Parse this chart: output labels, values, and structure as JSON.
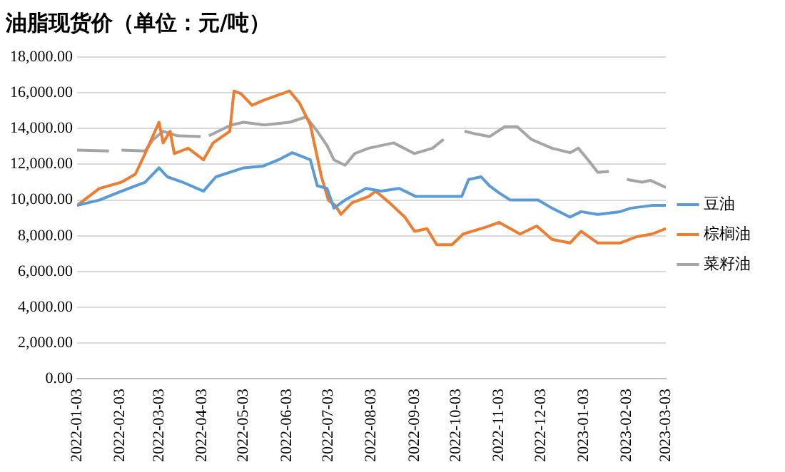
{
  "chart_data": {
    "type": "line",
    "title": "油脂现货价（单位：元/吨）",
    "xlim": [
      "2022-01-03",
      "2023-03-03"
    ],
    "xticks": [
      "2022-01-03",
      "2022-02-03",
      "2022-03-03",
      "2022-04-03",
      "2022-05-03",
      "2022-06-03",
      "2022-07-03",
      "2022-08-03",
      "2022-09-03",
      "2022-10-03",
      "2022-11-03",
      "2022-12-03",
      "2023-01-03",
      "2023-02-03",
      "2023-03-03"
    ],
    "ylim": [
      0,
      18000
    ],
    "yticks": [
      {
        "value": 0,
        "label": "0.00"
      },
      {
        "value": 2000,
        "label": "2,000.00"
      },
      {
        "value": 4000,
        "label": "4,000.00"
      },
      {
        "value": 6000,
        "label": "6,000.00"
      },
      {
        "value": 8000,
        "label": "8,000.00"
      },
      {
        "value": 10000,
        "label": "10,000.00"
      },
      {
        "value": 12000,
        "label": "12,000.00"
      },
      {
        "value": 14000,
        "label": "14,000.00"
      },
      {
        "value": 16000,
        "label": "16,000.00"
      },
      {
        "value": 18000,
        "label": "18,000.00"
      }
    ],
    "grid": "y",
    "legend": "right",
    "marker": "none",
    "line_style": "solid",
    "series": [
      {
        "name": "豆油",
        "color": "#5b9bd5",
        "x": [
          "2022-01-03",
          "2022-01-19",
          "2022-02-04",
          "2022-02-21",
          "2022-03-03",
          "2022-03-09",
          "2022-03-20",
          "2022-04-04",
          "2022-04-13",
          "2022-05-03",
          "2022-05-17",
          "2022-05-28",
          "2022-06-07",
          "2022-06-20",
          "2022-06-25",
          "2022-07-02",
          "2022-07-07",
          "2022-07-15",
          "2022-07-30",
          "2022-08-10",
          "2022-08-23",
          "2022-09-04",
          "2022-09-17",
          "2022-09-28",
          "2022-10-07",
          "2022-10-12",
          "2022-10-21",
          "2022-10-27",
          "2022-11-03",
          "2022-11-11",
          "2022-12-01",
          "2022-12-11",
          "2022-12-24",
          "2023-01-01",
          "2023-01-13",
          "2023-01-29",
          "2023-02-06",
          "2023-02-21",
          "2023-03-03"
        ],
        "values": [
          9700,
          10000,
          10500,
          11000,
          11800,
          11300,
          11000,
          10500,
          11300,
          11800,
          11900,
          12250,
          12650,
          12250,
          10800,
          10650,
          9550,
          10000,
          10650,
          10500,
          10650,
          10200,
          10200,
          10200,
          10200,
          11150,
          11300,
          10800,
          10400,
          10000,
          10000,
          9550,
          9050,
          9350,
          9200,
          9350,
          9550,
          9700,
          9700
        ]
      },
      {
        "name": "棕榈油",
        "color": "#ed7d31",
        "x": [
          "2022-01-03",
          "2022-01-19",
          "2022-02-04",
          "2022-02-14",
          "2022-02-21",
          "2022-03-03",
          "2022-03-06",
          "2022-03-11",
          "2022-03-14",
          "2022-03-24",
          "2022-04-04",
          "2022-04-11",
          "2022-04-23",
          "2022-04-26",
          "2022-05-01",
          "2022-05-09",
          "2022-05-18",
          "2022-06-05",
          "2022-06-12",
          "2022-06-20",
          "2022-06-28",
          "2022-07-03",
          "2022-07-08",
          "2022-07-12",
          "2022-07-20",
          "2022-08-01",
          "2022-08-06",
          "2022-08-16",
          "2022-08-27",
          "2022-09-03",
          "2022-09-12",
          "2022-09-19",
          "2022-09-30",
          "2022-10-08",
          "2022-10-25",
          "2022-11-03",
          "2022-11-18",
          "2022-11-30",
          "2022-12-11",
          "2022-12-24",
          "2023-01-01",
          "2023-01-13",
          "2023-01-29",
          "2023-02-10",
          "2023-02-21",
          "2023-03-03"
        ],
        "values": [
          9700,
          10650,
          11000,
          11450,
          12600,
          14350,
          13200,
          13850,
          12600,
          12900,
          12250,
          13200,
          13850,
          16100,
          15950,
          15300,
          15600,
          16100,
          15450,
          14200,
          11300,
          10000,
          9700,
          9200,
          9850,
          10200,
          10500,
          9850,
          9050,
          8250,
          8400,
          7500,
          7500,
          8100,
          8500,
          8750,
          8100,
          8550,
          7800,
          7600,
          8250,
          7600,
          7600,
          7950,
          8100,
          8400
        ]
      },
      {
        "name": "菜籽油",
        "color": "#a5a5a5",
        "x": [
          "2022-01-03",
          "2022-01-26",
          "2022-01-30",
          "2022-02-04",
          "2022-02-21",
          "2022-02-27",
          "2022-03-06",
          "2022-03-16",
          "2022-04-02",
          "2022-04-05",
          "2022-04-08",
          "2022-04-24",
          "2022-05-03",
          "2022-05-18",
          "2022-06-05",
          "2022-06-17",
          "2022-06-25",
          "2022-07-02",
          "2022-07-07",
          "2022-07-15",
          "2022-07-22",
          "2022-08-01",
          "2022-08-19",
          "2022-09-03",
          "2022-09-16",
          "2022-09-24",
          "2022-10-01",
          "2022-10-09",
          "2022-10-17",
          "2022-10-27",
          "2022-11-07",
          "2022-11-16",
          "2022-11-26",
          "2022-12-11",
          "2022-12-24",
          "2022-12-30",
          "2023-01-06",
          "2023-01-13",
          "2023-01-21",
          "2023-01-27",
          "2023-02-03",
          "2023-02-14",
          "2023-02-20",
          "2023-03-03"
        ],
        "values": [
          12800,
          12750,
          null,
          12800,
          12750,
          13400,
          13850,
          13600,
          13550,
          null,
          13600,
          14200,
          14350,
          14200,
          14350,
          14650,
          13850,
          13050,
          12250,
          11950,
          12600,
          12900,
          13200,
          12600,
          12900,
          13400,
          null,
          13850,
          13700,
          13550,
          14100,
          14100,
          13400,
          12900,
          12650,
          12900,
          12250,
          11550,
          11600,
          null,
          11150,
          11000,
          11100,
          10700
        ]
      }
    ]
  }
}
